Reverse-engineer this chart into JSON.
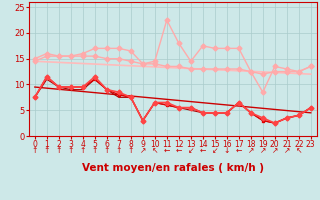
{
  "background_color": "#cde8e8",
  "grid_color": "#aacccc",
  "xlabel": "Vent moyen/en rafales ( km/h )",
  "xlabel_color": "#cc0000",
  "xlabel_fontsize": 7.5,
  "xtick_color": "#cc0000",
  "ytick_color": "#cc0000",
  "xlim": [
    -0.5,
    23.5
  ],
  "ylim": [
    0,
    26
  ],
  "yticks": [
    0,
    5,
    10,
    15,
    20,
    25
  ],
  "xticks": [
    0,
    1,
    2,
    3,
    4,
    5,
    6,
    7,
    8,
    9,
    10,
    11,
    12,
    13,
    14,
    15,
    16,
    17,
    18,
    19,
    20,
    21,
    22,
    23
  ],
  "line_trend": {
    "x": [
      0,
      23
    ],
    "y": [
      14.5,
      12.0
    ],
    "color": "#ffbbbb",
    "linewidth": 1.2
  },
  "line_rafales": {
    "x": [
      0,
      1,
      2,
      3,
      4,
      5,
      6,
      7,
      8,
      9,
      10,
      11,
      12,
      13,
      14,
      15,
      16,
      17,
      18,
      19,
      20,
      21,
      22,
      23
    ],
    "y": [
      15.0,
      16.0,
      15.5,
      15.5,
      16.0,
      17.0,
      17.0,
      17.0,
      16.5,
      14.0,
      14.5,
      22.5,
      18.0,
      14.5,
      17.5,
      17.0,
      17.0,
      17.0,
      12.5,
      8.5,
      13.5,
      13.0,
      12.5,
      13.5
    ],
    "color": "#ffaaaa",
    "marker": "D",
    "markersize": 2.5,
    "linewidth": 1.0
  },
  "line_avg_light": {
    "x": [
      0,
      1,
      2,
      3,
      4,
      5,
      6,
      7,
      8,
      9,
      10,
      11,
      12,
      13,
      14,
      15,
      16,
      17,
      18,
      19,
      20,
      21,
      22,
      23
    ],
    "y": [
      14.5,
      15.5,
      15.5,
      15.5,
      15.5,
      15.5,
      15.0,
      15.0,
      14.5,
      14.0,
      14.0,
      13.5,
      13.5,
      13.0,
      13.0,
      13.0,
      13.0,
      13.0,
      12.5,
      12.0,
      12.5,
      12.5,
      12.5,
      13.5
    ],
    "color": "#ffaaaa",
    "marker": "D",
    "markersize": 2.5,
    "linewidth": 1.0
  },
  "line_moyen1": {
    "x": [
      0,
      1,
      2,
      3,
      4,
      5,
      6,
      7,
      8,
      9,
      10,
      11,
      12,
      13,
      14,
      15,
      16,
      17,
      18,
      19,
      20,
      21,
      22,
      23
    ],
    "y": [
      7.5,
      11.5,
      9.5,
      9.5,
      9.5,
      11.5,
      9.0,
      8.5,
      7.5,
      3.0,
      6.5,
      6.5,
      5.5,
      5.5,
      4.5,
      4.5,
      4.5,
      6.5,
      4.5,
      3.5,
      2.5,
      3.5,
      4.0,
      5.5
    ],
    "color": "#ff4444",
    "marker": "D",
    "markersize": 2.5,
    "linewidth": 1.2
  },
  "line_moyen2": {
    "x": [
      0,
      1,
      2,
      3,
      4,
      5,
      6,
      7,
      8,
      9,
      10,
      11,
      12,
      13,
      14,
      15,
      16,
      17,
      18,
      19,
      20,
      21,
      22,
      23
    ],
    "y": [
      7.5,
      11.5,
      9.5,
      9.5,
      9.5,
      11.0,
      9.0,
      8.0,
      7.5,
      3.0,
      6.5,
      6.0,
      5.5,
      5.5,
      4.5,
      4.5,
      4.5,
      6.5,
      4.5,
      3.0,
      2.5,
      3.5,
      4.0,
      5.5
    ],
    "color": "#dd0000",
    "marker": "s",
    "markersize": 2.0,
    "linewidth": 1.0
  },
  "line_trend2": {
    "x": [
      0,
      23
    ],
    "y": [
      9.5,
      4.5
    ],
    "color": "#cc0000",
    "linewidth": 1.0
  },
  "line_moyen3": {
    "x": [
      0,
      1,
      2,
      3,
      4,
      5,
      6,
      7,
      8,
      9,
      10,
      11,
      12,
      13,
      14,
      15,
      16,
      17,
      18,
      19,
      20,
      21,
      22,
      23
    ],
    "y": [
      7.5,
      11.0,
      9.5,
      9.0,
      9.0,
      11.0,
      9.0,
      7.5,
      7.5,
      3.0,
      6.5,
      6.0,
      5.5,
      5.0,
      4.5,
      4.5,
      4.5,
      6.5,
      4.5,
      3.0,
      2.5,
      3.5,
      4.0,
      5.5
    ],
    "color": "#aa0000",
    "linewidth": 0.8
  },
  "arrow_symbols": [
    "↑",
    "↑",
    "↑",
    "↑",
    "↑",
    "↑",
    "↑",
    "↑",
    "↑",
    "↗",
    "↖",
    "←",
    "←",
    "↙",
    "←",
    "↙",
    "↓",
    "←",
    "↗",
    "↗",
    "↗",
    "↗",
    "↖"
  ],
  "arrow_color": "#cc0000",
  "arrow_fontsize": 5.5
}
